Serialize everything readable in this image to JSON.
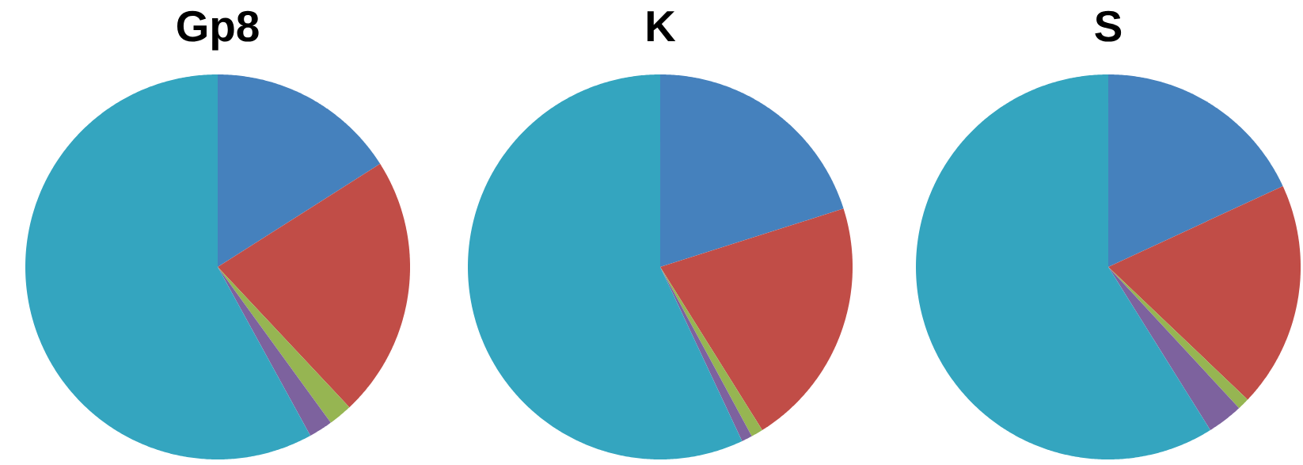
{
  "chart_data": [
    {
      "type": "pie",
      "title": "Gp8",
      "categories": [
        null,
        null,
        null,
        null,
        null
      ],
      "values": [
        16.0,
        22.0,
        2.0,
        2.0,
        58.0
      ],
      "colors": [
        "#4581bd",
        "#c14d47",
        "#96b552",
        "#7d629e",
        "#34a5bf"
      ]
    },
    {
      "type": "pie",
      "title": "K",
      "categories": [
        null,
        null,
        null,
        null,
        null
      ],
      "values": [
        20.1,
        21.0,
        1.0,
        0.9,
        57.0
      ],
      "colors": [
        "#4581bd",
        "#c14d47",
        "#96b552",
        "#7d629e",
        "#34a5bf"
      ]
    },
    {
      "type": "pie",
      "title": "S",
      "categories": [
        null,
        null,
        null,
        null,
        null
      ],
      "values": [
        18.1,
        19.0,
        1.0,
        3.0,
        58.9
      ],
      "colors": [
        "#4581bd",
        "#c14d47",
        "#96b552",
        "#7d629e",
        "#34a5bf"
      ]
    }
  ]
}
